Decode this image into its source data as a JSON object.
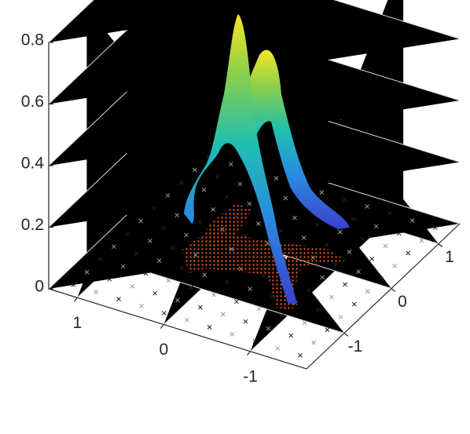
{
  "chart_data": {
    "type": "surface3d",
    "xlim": [
      1.33,
      -1.65
    ],
    "xticks": [
      1,
      0,
      -1
    ],
    "ylim": [
      -1.8,
      1.45
    ],
    "yticks": [
      -1,
      0,
      1
    ],
    "zlim": [
      0,
      0.8
    ],
    "zticks": [
      0,
      0.2,
      0.4,
      0.6,
      0.8
    ],
    "grid": true
  }
}
